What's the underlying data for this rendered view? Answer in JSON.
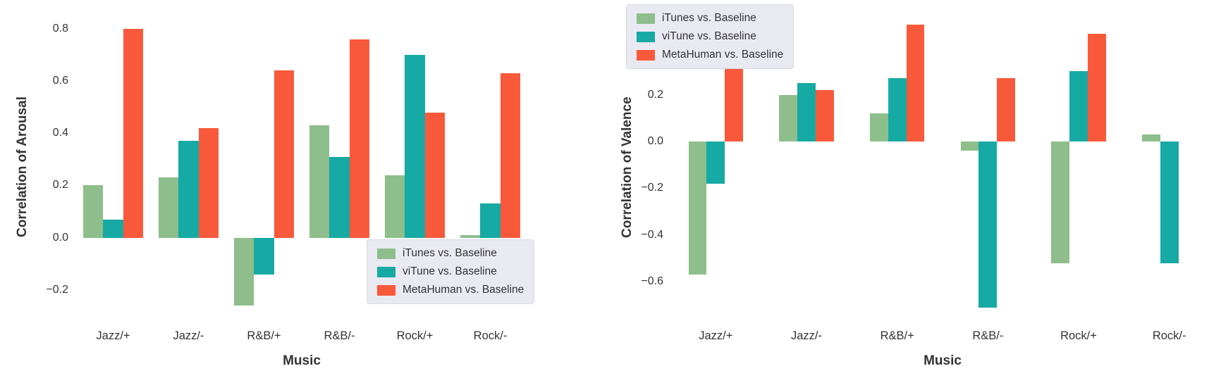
{
  "figure": {
    "background": "#ffffff"
  },
  "chart_data": [
    {
      "type": "bar",
      "title": "",
      "xlabel": "Music",
      "ylabel": "Correlation of Arousal",
      "categories": [
        "Jazz/+",
        "Jazz/-",
        "R&B/+",
        "R&B/-",
        "Rock/+",
        "Rock/-"
      ],
      "series": [
        {
          "name": "iTunes vs. Baseline",
          "color": "#8ebe8b",
          "values": [
            0.2,
            0.23,
            -0.26,
            0.43,
            0.24,
            0.01
          ]
        },
        {
          "name": "viTune vs. Baseline",
          "color": "#17a9a4",
          "values": [
            0.07,
            0.37,
            -0.14,
            0.31,
            0.7,
            0.13
          ]
        },
        {
          "name": "MetaHuman vs. Baseline",
          "color": "#f9593b",
          "values": [
            0.8,
            0.42,
            0.64,
            0.76,
            0.48,
            0.63
          ]
        }
      ],
      "ylim": [
        -0.33,
        0.87
      ],
      "yticks": [
        0.8,
        0.6,
        0.4,
        0.2,
        0.0,
        -0.2
      ],
      "bar_fill": 0.8,
      "grid": false,
      "legend_position": "lower right"
    },
    {
      "type": "bar",
      "title": "",
      "xlabel": "Music",
      "ylabel": "Correlation of Valence",
      "categories": [
        "Jazz/+",
        "Jazz/-",
        "R&B/+",
        "R&B/-",
        "Rock/+",
        "Rock/-"
      ],
      "series": [
        {
          "name": "iTunes vs. Baseline",
          "color": "#8ebe8b",
          "values": [
            -0.57,
            0.2,
            0.12,
            -0.04,
            -0.52,
            0.03
          ]
        },
        {
          "name": "viTune vs. Baseline",
          "color": "#17a9a4",
          "values": [
            -0.18,
            0.25,
            0.27,
            -0.71,
            0.3,
            -0.52
          ]
        },
        {
          "name": "MetaHuman vs. Baseline",
          "color": "#f9593b",
          "values": [
            0.52,
            0.22,
            0.5,
            0.27,
            0.46,
            0.0
          ]
        }
      ],
      "ylim": [
        -0.78,
        0.56
      ],
      "yticks": [
        0.4,
        0.2,
        0.0,
        -0.2,
        -0.4,
        -0.6
      ],
      "bar_fill": 0.6,
      "grid": false,
      "legend_position": "upper left"
    }
  ]
}
